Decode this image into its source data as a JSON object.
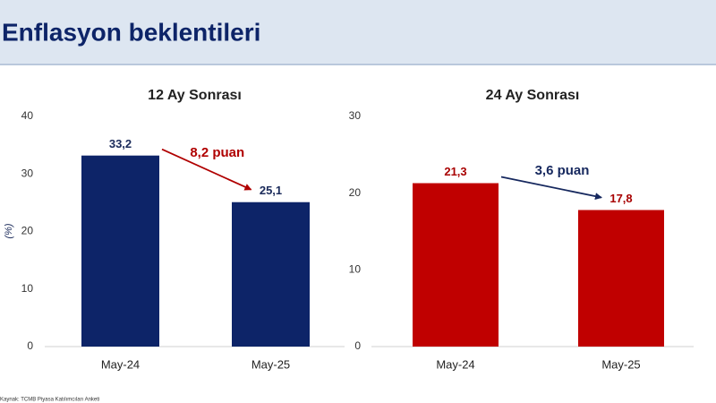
{
  "header": {
    "title": "Enflasyon beklentileri"
  },
  "source": "Kaynak: TCMB Piyasa Katılımcıları Anketi",
  "chart_data": [
    {
      "type": "bar",
      "title": "12 Ay Sonrası",
      "y_label": "(%)",
      "categories": [
        "May-24",
        "May-25"
      ],
      "values": [
        33.2,
        25.1
      ],
      "value_labels": [
        "33,2",
        "25,1"
      ],
      "color": "#0d2468",
      "label_color": "#1a2a5a",
      "annotation": "8,2 puan",
      "annotation_color": "#b00000",
      "ylim": [
        0,
        40
      ],
      "yticks": [
        0,
        10,
        20,
        30,
        40
      ]
    },
    {
      "type": "bar",
      "title": "24 Ay Sonrası",
      "categories": [
        "May-24",
        "May-25"
      ],
      "values": [
        21.3,
        17.8
      ],
      "value_labels": [
        "21,3",
        "17,8"
      ],
      "color": "#c00000",
      "label_color": "#a80000",
      "annotation": "3,6 puan",
      "annotation_color": "#16285e",
      "ylim": [
        0,
        30
      ],
      "yticks": [
        0,
        10,
        20,
        30
      ]
    }
  ]
}
